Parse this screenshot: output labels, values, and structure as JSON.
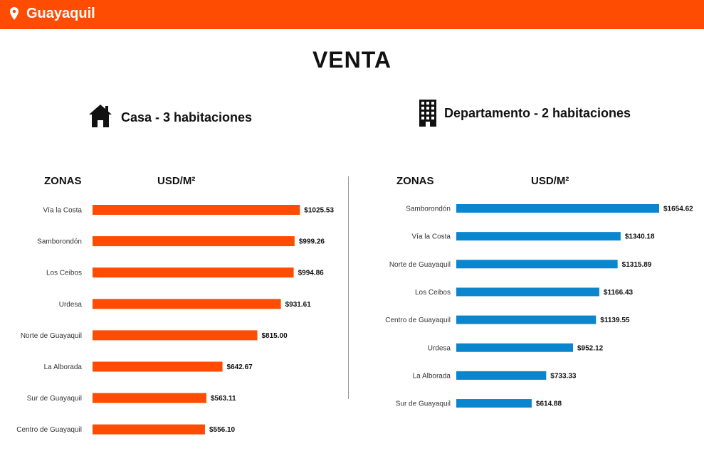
{
  "header": {
    "location": "Guayaquil",
    "location_icon": "map-pin-icon",
    "bar_color": "#fe4d02"
  },
  "page_title": "VENTA",
  "columns": {
    "zone": "ZONAS",
    "price": "USD/M²"
  },
  "chart_data": [
    {
      "type": "bar",
      "orientation": "horizontal",
      "title": "Casa - 3 habitaciones",
      "icon": "house-icon",
      "color": "#fe4d02",
      "xlim": [
        0,
        1654.62
      ],
      "categories": [
        "Vía la Costa",
        "Samborondón",
        "Los Ceibos",
        "Urdesa",
        "Norte de Guayaquil",
        "La Alborada",
        "Sur de Guayaquil",
        "Centro de Guayaquil"
      ],
      "values": [
        1025.53,
        999.26,
        994.86,
        931.61,
        815.0,
        642.67,
        563.11,
        556.1
      ],
      "value_labels": [
        "$1025.53",
        "$999.26",
        "$994.86",
        "$931.61",
        "$815.00",
        "$642.67",
        "$563.11",
        "$556.10"
      ]
    },
    {
      "type": "bar",
      "orientation": "horizontal",
      "title": "Departamento - 2 habitaciones",
      "icon": "apartment-building-icon",
      "color": "#0a86cf",
      "xlim": [
        0,
        1654.62
      ],
      "categories": [
        "Samborondón",
        "Vía la Costa",
        "Norte de Guayaquil",
        "Los Ceibos",
        "Centro de Guayaquil",
        "Urdesa",
        "La Alborada",
        "Sur de Guayaquil"
      ],
      "values": [
        1654.62,
        1340.18,
        1315.89,
        1166.43,
        1139.55,
        952.12,
        733.33,
        614.88
      ],
      "value_labels": [
        "$1654.62",
        "$1340.18",
        "$1315.89",
        "$1166.43",
        "$1139.55",
        "$952.12",
        "$733.33",
        "$614.88"
      ]
    }
  ]
}
